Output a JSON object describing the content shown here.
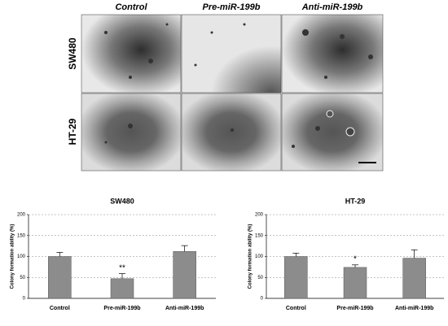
{
  "image_panel": {
    "columns": [
      "Control",
      "Pre-miR-199b",
      "Anti-miR-199b"
    ],
    "rows": [
      "SW480",
      "HT-29"
    ]
  },
  "chart_data": [
    {
      "type": "bar",
      "title": "SW480",
      "y_label": "Colony formation ability (%)",
      "categories": [
        "Control",
        "Pre-miR-199b",
        "Anti-miR-199b"
      ],
      "values": [
        100,
        47,
        112
      ],
      "errors": [
        10,
        12,
        14
      ],
      "value_annotations": [
        null,
        "**",
        null
      ],
      "color": "#8c8c8c",
      "ylim": [
        0,
        200
      ],
      "yticks": [
        0,
        50,
        100,
        150,
        200
      ],
      "grid": true
    },
    {
      "type": "bar",
      "title": "HT-29",
      "y_label": "Colony formation ability (%)",
      "categories": [
        "Control",
        "Pre-miR-199b",
        "Anti-miR-199b"
      ],
      "values": [
        100,
        74,
        96
      ],
      "errors": [
        8,
        6,
        20
      ],
      "value_annotations": [
        null,
        "*",
        null
      ],
      "color": "#8c8c8c",
      "ylim": [
        0,
        200
      ],
      "yticks": [
        0,
        50,
        100,
        150,
        200
      ],
      "grid": true
    }
  ]
}
